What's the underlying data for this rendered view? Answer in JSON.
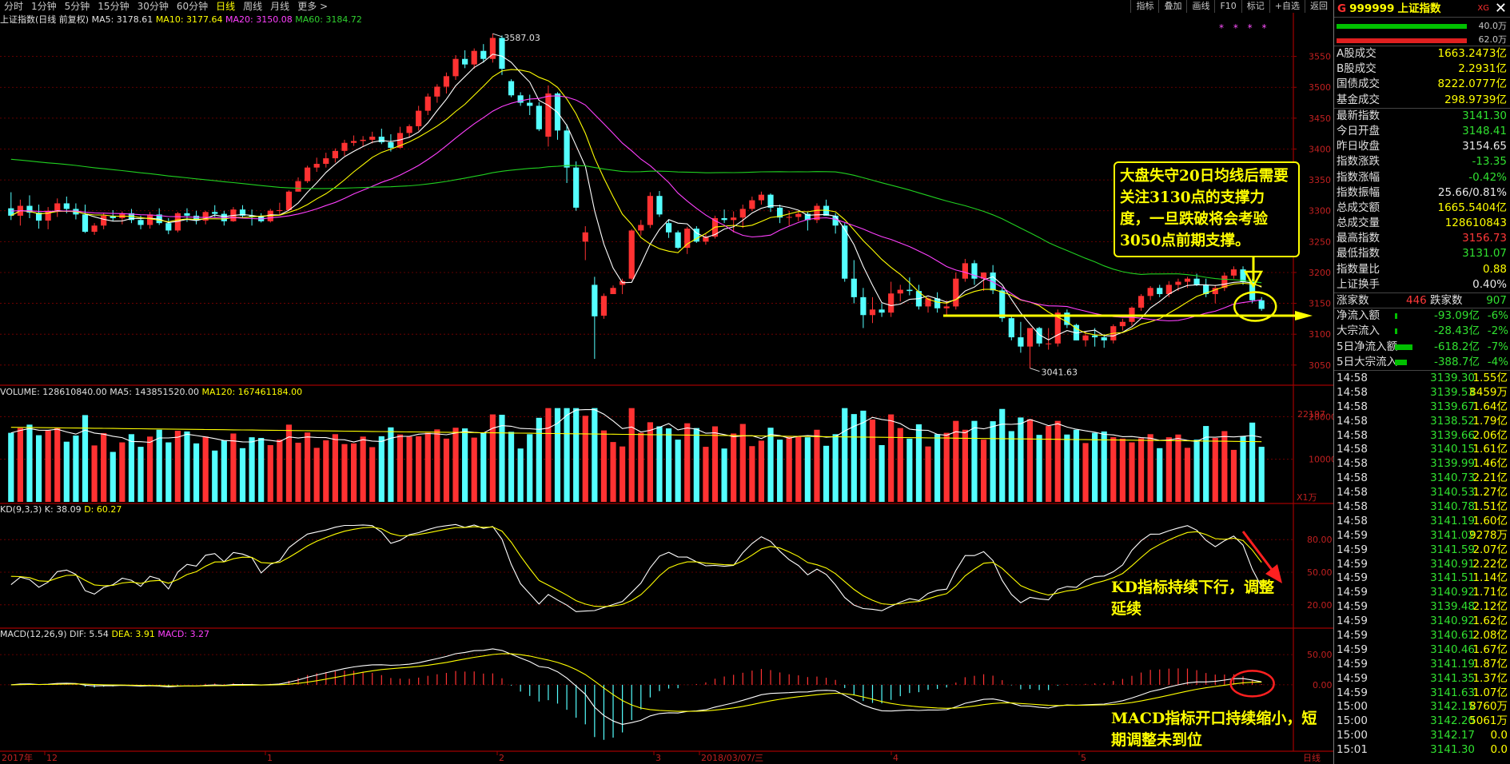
{
  "period_tabs": [
    "分时",
    "1分钟",
    "5分钟",
    "15分钟",
    "30分钟",
    "60分钟",
    "日线",
    "周线",
    "月线",
    "更多 >"
  ],
  "active_tab": "日线",
  "toolbar": [
    "指标",
    "叠加",
    "画线",
    "F10",
    "标记",
    "+自选",
    "返回"
  ],
  "legend_main": {
    "name": "上证指数(日线 前复权)",
    "ma5": "MA5: 3178.61",
    "ma10": "MA10: 3177.64",
    "ma20": "MA20: 3150.08",
    "ma60": "MA60: 3184.72"
  },
  "legend_vol": {
    "name": "VOLUME: 128610840.00",
    "ma5": "MA5: 143851520.00",
    "ma120": "MA120: 167461184.00"
  },
  "legend_kdj": {
    "name": "KD(9,3,3)",
    "k": "K: 38.09",
    "d": "D: 60.27"
  },
  "legend_macd": {
    "name": "MACD(12,26,9)",
    "dif": "DIF: 5.54",
    "dea": "DEA: 3.91",
    "macd": "MACD: 3.27"
  },
  "stars": "* * * *",
  "annotations": {
    "box": "大盘失守20日均线后需要关注3130点的支撑力度，一旦跌破将会考验3050点前期支撑。",
    "kd": "KD指标持续下行，调整延续",
    "macd": "MACD指标开口持续缩小，短期调整未到位"
  },
  "chart_data": {
    "type": "candlestick",
    "price_axis": {
      "ticks": [
        3050,
        3100,
        3150,
        3200,
        3250,
        3300,
        3350,
        3400,
        3450,
        3500,
        3550
      ],
      "range": [
        3020,
        3600
      ]
    },
    "high_label": "3587.03",
    "low_label": "3041.63",
    "volume_axis": {
      "ticks_labels": [
        "22197",
        "20000",
        "10000",
        "X1万"
      ]
    },
    "kdj_axis": {
      "ticks": [
        "80.00",
        "50.00",
        "20.00"
      ]
    },
    "macd_axis": {
      "ticks": [
        "50.00",
        "0.00"
      ]
    },
    "x_labels": [
      "2017年",
      "12",
      "1",
      "2",
      "3",
      "2018/03/07/三",
      "4",
      "5",
      "日线"
    ],
    "support_line": 3130,
    "candles": [
      {
        "o": 3304,
        "h": 3330,
        "l": 3285,
        "c": 3292
      },
      {
        "o": 3292,
        "h": 3318,
        "l": 3276,
        "c": 3308
      },
      {
        "o": 3308,
        "h": 3325,
        "l": 3288,
        "c": 3297
      },
      {
        "o": 3297,
        "h": 3310,
        "l": 3271,
        "c": 3284
      },
      {
        "o": 3284,
        "h": 3306,
        "l": 3270,
        "c": 3300
      },
      {
        "o": 3300,
        "h": 3320,
        "l": 3290,
        "c": 3312
      },
      {
        "o": 3312,
        "h": 3323,
        "l": 3296,
        "c": 3303
      },
      {
        "o": 3303,
        "h": 3312,
        "l": 3286,
        "c": 3294
      },
      {
        "o": 3294,
        "h": 3310,
        "l": 3264,
        "c": 3266
      },
      {
        "o": 3266,
        "h": 3280,
        "l": 3261,
        "c": 3276
      },
      {
        "o": 3276,
        "h": 3297,
        "l": 3270,
        "c": 3292
      },
      {
        "o": 3292,
        "h": 3301,
        "l": 3284,
        "c": 3288
      },
      {
        "o": 3288,
        "h": 3299,
        "l": 3278,
        "c": 3296
      },
      {
        "o": 3296,
        "h": 3303,
        "l": 3280,
        "c": 3285
      },
      {
        "o": 3285,
        "h": 3292,
        "l": 3270,
        "c": 3277
      },
      {
        "o": 3277,
        "h": 3298,
        "l": 3271,
        "c": 3294
      },
      {
        "o": 3294,
        "h": 3304,
        "l": 3277,
        "c": 3280
      },
      {
        "o": 3280,
        "h": 3288,
        "l": 3262,
        "c": 3268
      },
      {
        "o": 3268,
        "h": 3298,
        "l": 3265,
        "c": 3296
      },
      {
        "o": 3296,
        "h": 3304,
        "l": 3282,
        "c": 3292
      },
      {
        "o": 3292,
        "h": 3300,
        "l": 3278,
        "c": 3284
      },
      {
        "o": 3284,
        "h": 3300,
        "l": 3278,
        "c": 3298
      },
      {
        "o": 3298,
        "h": 3309,
        "l": 3290,
        "c": 3295
      },
      {
        "o": 3295,
        "h": 3300,
        "l": 3276,
        "c": 3283
      },
      {
        "o": 3283,
        "h": 3306,
        "l": 3282,
        "c": 3302
      },
      {
        "o": 3302,
        "h": 3309,
        "l": 3289,
        "c": 3292
      },
      {
        "o": 3292,
        "h": 3302,
        "l": 3276,
        "c": 3290
      },
      {
        "o": 3290,
        "h": 3296,
        "l": 3281,
        "c": 3283
      },
      {
        "o": 3283,
        "h": 3303,
        "l": 3281,
        "c": 3300
      },
      {
        "o": 3300,
        "h": 3313,
        "l": 3293,
        "c": 3301
      },
      {
        "o": 3301,
        "h": 3333,
        "l": 3301,
        "c": 3331
      },
      {
        "o": 3331,
        "h": 3354,
        "l": 3331,
        "c": 3348
      },
      {
        "o": 3348,
        "h": 3373,
        "l": 3345,
        "c": 3370
      },
      {
        "o": 3370,
        "h": 3386,
        "l": 3363,
        "c": 3376
      },
      {
        "o": 3376,
        "h": 3394,
        "l": 3370,
        "c": 3385
      },
      {
        "o": 3385,
        "h": 3401,
        "l": 3378,
        "c": 3397
      },
      {
        "o": 3397,
        "h": 3415,
        "l": 3389,
        "c": 3410
      },
      {
        "o": 3410,
        "h": 3422,
        "l": 3405,
        "c": 3413
      },
      {
        "o": 3413,
        "h": 3421,
        "l": 3404,
        "c": 3415
      },
      {
        "o": 3415,
        "h": 3428,
        "l": 3409,
        "c": 3420
      },
      {
        "o": 3420,
        "h": 3433,
        "l": 3408,
        "c": 3411
      },
      {
        "o": 3411,
        "h": 3424,
        "l": 3396,
        "c": 3402
      },
      {
        "o": 3402,
        "h": 3436,
        "l": 3401,
        "c": 3426
      },
      {
        "o": 3426,
        "h": 3440,
        "l": 3418,
        "c": 3437
      },
      {
        "o": 3437,
        "h": 3470,
        "l": 3430,
        "c": 3462
      },
      {
        "o": 3462,
        "h": 3490,
        "l": 3455,
        "c": 3485
      },
      {
        "o": 3485,
        "h": 3505,
        "l": 3475,
        "c": 3501
      },
      {
        "o": 3501,
        "h": 3524,
        "l": 3490,
        "c": 3518
      },
      {
        "o": 3518,
        "h": 3552,
        "l": 3512,
        "c": 3546
      },
      {
        "o": 3546,
        "h": 3560,
        "l": 3531,
        "c": 3537
      },
      {
        "o": 3537,
        "h": 3563,
        "l": 3530,
        "c": 3559
      },
      {
        "o": 3559,
        "h": 3570,
        "l": 3540,
        "c": 3546
      },
      {
        "o": 3546,
        "h": 3587,
        "l": 3540,
        "c": 3580
      },
      {
        "o": 3580,
        "h": 3584,
        "l": 3520,
        "c": 3530
      },
      {
        "o": 3510,
        "h": 3513,
        "l": 3484,
        "c": 3487
      },
      {
        "o": 3487,
        "h": 3492,
        "l": 3470,
        "c": 3475
      },
      {
        "o": 3475,
        "h": 3488,
        "l": 3455,
        "c": 3470
      },
      {
        "o": 3470,
        "h": 3476,
        "l": 3429,
        "c": 3432
      },
      {
        "o": 3420,
        "h": 3503,
        "l": 3404,
        "c": 3490
      },
      {
        "o": 3490,
        "h": 3492,
        "l": 3415,
        "c": 3430
      },
      {
        "o": 3430,
        "h": 3440,
        "l": 3345,
        "c": 3370
      },
      {
        "o": 3370,
        "h": 3380,
        "l": 3300,
        "c": 3305
      },
      {
        "o": 3250,
        "h": 3275,
        "l": 3220,
        "c": 3265
      },
      {
        "o": 3180,
        "h": 3193,
        "l": 3060,
        "c": 3129
      },
      {
        "o": 3130,
        "h": 3166,
        "l": 3125,
        "c": 3162
      },
      {
        "o": 3165,
        "h": 3179,
        "l": 3165,
        "c": 3175
      },
      {
        "o": 3180,
        "h": 3190,
        "l": 3165,
        "c": 3186
      },
      {
        "o": 3190,
        "h": 3270,
        "l": 3188,
        "c": 3268
      },
      {
        "o": 3268,
        "h": 3285,
        "l": 3260,
        "c": 3277
      },
      {
        "o": 3277,
        "h": 3330,
        "l": 3272,
        "c": 3324
      },
      {
        "o": 3324,
        "h": 3332,
        "l": 3290,
        "c": 3294
      },
      {
        "o": 3280,
        "h": 3285,
        "l": 3256,
        "c": 3265
      },
      {
        "o": 3265,
        "h": 3268,
        "l": 3238,
        "c": 3240
      },
      {
        "o": 3240,
        "h": 3274,
        "l": 3230,
        "c": 3271
      },
      {
        "o": 3271,
        "h": 3275,
        "l": 3248,
        "c": 3250
      },
      {
        "o": 3250,
        "h": 3262,
        "l": 3245,
        "c": 3258
      },
      {
        "o": 3258,
        "h": 3292,
        "l": 3255,
        "c": 3288
      },
      {
        "o": 3288,
        "h": 3302,
        "l": 3280,
        "c": 3285
      },
      {
        "o": 3285,
        "h": 3299,
        "l": 3265,
        "c": 3289
      },
      {
        "o": 3289,
        "h": 3310,
        "l": 3272,
        "c": 3303
      },
      {
        "o": 3303,
        "h": 3323,
        "l": 3300,
        "c": 3317
      },
      {
        "o": 3317,
        "h": 3331,
        "l": 3310,
        "c": 3326
      },
      {
        "o": 3326,
        "h": 3328,
        "l": 3298,
        "c": 3305
      },
      {
        "o": 3305,
        "h": 3310,
        "l": 3280,
        "c": 3289
      },
      {
        "o": 3289,
        "h": 3300,
        "l": 3276,
        "c": 3290
      },
      {
        "o": 3290,
        "h": 3298,
        "l": 3283,
        "c": 3295
      },
      {
        "o": 3295,
        "h": 3299,
        "l": 3268,
        "c": 3285
      },
      {
        "o": 3285,
        "h": 3312,
        "l": 3280,
        "c": 3308
      },
      {
        "o": 3308,
        "h": 3318,
        "l": 3292,
        "c": 3292
      },
      {
        "o": 3292,
        "h": 3296,
        "l": 3263,
        "c": 3276
      },
      {
        "o": 3276,
        "h": 3280,
        "l": 3185,
        "c": 3190
      },
      {
        "o": 3190,
        "h": 3220,
        "l": 3150,
        "c": 3160
      },
      {
        "o": 3160,
        "h": 3175,
        "l": 3110,
        "c": 3131
      },
      {
        "o": 3131,
        "h": 3160,
        "l": 3118,
        "c": 3140
      },
      {
        "o": 3140,
        "h": 3150,
        "l": 3128,
        "c": 3135
      },
      {
        "o": 3135,
        "h": 3185,
        "l": 3128,
        "c": 3166
      },
      {
        "o": 3166,
        "h": 3180,
        "l": 3153,
        "c": 3172
      },
      {
        "o": 3172,
        "h": 3192,
        "l": 3163,
        "c": 3170
      },
      {
        "o": 3170,
        "h": 3180,
        "l": 3140,
        "c": 3145
      },
      {
        "o": 3145,
        "h": 3160,
        "l": 3135,
        "c": 3158
      },
      {
        "o": 3158,
        "h": 3168,
        "l": 3135,
        "c": 3142
      },
      {
        "o": 3142,
        "h": 3155,
        "l": 3130,
        "c": 3145
      },
      {
        "o": 3145,
        "h": 3200,
        "l": 3140,
        "c": 3190
      },
      {
        "o": 3190,
        "h": 3222,
        "l": 3185,
        "c": 3215
      },
      {
        "o": 3215,
        "h": 3220,
        "l": 3180,
        "c": 3190
      },
      {
        "o": 3190,
        "h": 3200,
        "l": 3170,
        "c": 3200
      },
      {
        "o": 3200,
        "h": 3212,
        "l": 3165,
        "c": 3171
      },
      {
        "o": 3171,
        "h": 3175,
        "l": 3120,
        "c": 3126
      },
      {
        "o": 3126,
        "h": 3130,
        "l": 3090,
        "c": 3095
      },
      {
        "o": 3095,
        "h": 3120,
        "l": 3070,
        "c": 3080
      },
      {
        "o": 3080,
        "h": 3110,
        "l": 3045,
        "c": 3110
      },
      {
        "o": 3110,
        "h": 3112,
        "l": 3080,
        "c": 3085
      },
      {
        "o": 3085,
        "h": 3110,
        "l": 3075,
        "c": 3085
      },
      {
        "o": 3085,
        "h": 3140,
        "l": 3080,
        "c": 3135
      },
      {
        "o": 3135,
        "h": 3140,
        "l": 3110,
        "c": 3115
      },
      {
        "o": 3115,
        "h": 3117,
        "l": 3090,
        "c": 3090
      },
      {
        "o": 3090,
        "h": 3105,
        "l": 3080,
        "c": 3098
      },
      {
        "o": 3098,
        "h": 3110,
        "l": 3080,
        "c": 3095
      },
      {
        "o": 3095,
        "h": 3100,
        "l": 3078,
        "c": 3090
      },
      {
        "o": 3090,
        "h": 3116,
        "l": 3085,
        "c": 3113
      },
      {
        "o": 3113,
        "h": 3125,
        "l": 3106,
        "c": 3120
      },
      {
        "o": 3120,
        "h": 3145,
        "l": 3114,
        "c": 3143
      },
      {
        "o": 3143,
        "h": 3165,
        "l": 3138,
        "c": 3162
      },
      {
        "o": 3162,
        "h": 3178,
        "l": 3155,
        "c": 3175
      },
      {
        "o": 3175,
        "h": 3180,
        "l": 3160,
        "c": 3165
      },
      {
        "o": 3165,
        "h": 3186,
        "l": 3160,
        "c": 3180
      },
      {
        "o": 3180,
        "h": 3190,
        "l": 3170,
        "c": 3185
      },
      {
        "o": 3185,
        "h": 3193,
        "l": 3175,
        "c": 3190
      },
      {
        "o": 3190,
        "h": 3198,
        "l": 3178,
        "c": 3180
      },
      {
        "o": 3180,
        "h": 3190,
        "l": 3160,
        "c": 3165
      },
      {
        "o": 3165,
        "h": 3180,
        "l": 3150,
        "c": 3175
      },
      {
        "o": 3175,
        "h": 3200,
        "l": 3170,
        "c": 3195
      },
      {
        "o": 3195,
        "h": 3210,
        "l": 3190,
        "c": 3205
      },
      {
        "o": 3205,
        "h": 3210,
        "l": 3180,
        "c": 3185
      },
      {
        "o": 3185,
        "h": 3190,
        "l": 3150,
        "c": 3155
      },
      {
        "o": 3155,
        "h": 3160,
        "l": 3138,
        "c": 3141
      }
    ]
  },
  "panel": {
    "header": {
      "g": "G",
      "code": "999999",
      "name": "上证指数",
      "xg": "XG"
    },
    "bar_values": [
      "40.0万",
      "62.0万"
    ],
    "turnover": [
      {
        "label": "A股成交",
        "value": "1663.2473亿"
      },
      {
        "label": "B股成交",
        "value": "2.2931亿"
      },
      {
        "label": "国债成交",
        "value": "8222.0777亿"
      },
      {
        "label": "基金成交",
        "value": "298.9739亿"
      }
    ],
    "quote": [
      {
        "label": "最新指数",
        "value": "3141.30",
        "cls": "down"
      },
      {
        "label": "今日开盘",
        "value": "3148.41",
        "cls": "down"
      },
      {
        "label": "昨日收盘",
        "value": "3154.65",
        "cls": "wh"
      },
      {
        "label": "指数涨跌",
        "value": "-13.35",
        "cls": "down"
      },
      {
        "label": "指数涨幅",
        "value": "-0.42%",
        "cls": "down"
      },
      {
        "label": "指数振幅",
        "value": "25.66/0.81%",
        "cls": "wh"
      },
      {
        "label": "总成交额",
        "value": "1665.5404亿",
        "cls": "ye"
      },
      {
        "label": "总成交量",
        "value": "128610843",
        "cls": "ye"
      },
      {
        "label": "最高指数",
        "value": "3156.73",
        "cls": "up"
      },
      {
        "label": "最低指数",
        "value": "3131.07",
        "cls": "down"
      },
      {
        "label": "指数量比",
        "value": "0.88",
        "cls": "ye"
      },
      {
        "label": "上证换手",
        "value": "0.40%",
        "cls": "wh"
      }
    ],
    "rise_fall": {
      "rise_label": "涨家数",
      "rise": "446",
      "fall_label": "跌家数",
      "fall": "907"
    },
    "flows": [
      {
        "label": "净流入额",
        "value": "-93.09亿",
        "pct": "-6%",
        "bar": 0.02
      },
      {
        "label": "大宗流入",
        "value": "-28.43亿",
        "pct": "-2%",
        "bar": 0.02
      },
      {
        "label": "5日净流入额",
        "value": "-618.2亿",
        "pct": "-7%",
        "bar": 0.45
      },
      {
        "label": "5日大宗流入",
        "value": "-388.7亿",
        "pct": "-4%",
        "bar": 0.3
      }
    ],
    "ticks": [
      [
        "14:58",
        "3139.30",
        "1.55亿"
      ],
      [
        "14:58",
        "3139.53",
        "8459万"
      ],
      [
        "14:58",
        "3139.67",
        "1.64亿"
      ],
      [
        "14:58",
        "3138.52",
        "1.79亿"
      ],
      [
        "14:58",
        "3139.66",
        "2.06亿"
      ],
      [
        "14:58",
        "3140.15",
        "1.61亿"
      ],
      [
        "14:58",
        "3139.99",
        "1.46亿"
      ],
      [
        "14:58",
        "3140.73",
        "2.21亿"
      ],
      [
        "14:58",
        "3140.53",
        "1.27亿"
      ],
      [
        "14:58",
        "3140.78",
        "1.51亿"
      ],
      [
        "14:58",
        "3141.19",
        "1.60亿"
      ],
      [
        "14:59",
        "3141.02",
        "9278万"
      ],
      [
        "14:59",
        "3141.59",
        "2.07亿"
      ],
      [
        "14:59",
        "3140.91",
        "2.22亿"
      ],
      [
        "14:59",
        "3141.51",
        "1.14亿"
      ],
      [
        "14:59",
        "3140.92",
        "1.71亿"
      ],
      [
        "14:59",
        "3139.48",
        "2.12亿"
      ],
      [
        "14:59",
        "3140.92",
        "1.62亿"
      ],
      [
        "14:59",
        "3140.61",
        "2.08亿"
      ],
      [
        "14:59",
        "3140.46",
        "1.67亿"
      ],
      [
        "14:59",
        "3141.19",
        "1.87亿"
      ],
      [
        "14:59",
        "3141.35",
        "1.37亿"
      ],
      [
        "14:59",
        "3141.63",
        "1.07亿"
      ],
      [
        "15:00",
        "3142.15",
        "8760万"
      ],
      [
        "15:00",
        "3142.20",
        "5061万"
      ],
      [
        "15:00",
        "3142.17",
        "0.0"
      ],
      [
        "15:01",
        "3141.30",
        "0.0"
      ]
    ]
  }
}
